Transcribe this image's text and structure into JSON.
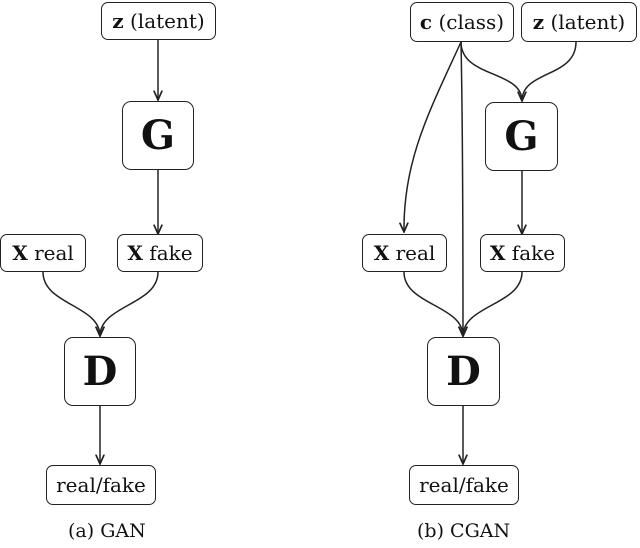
{
  "gan": {
    "z_node": {
      "symbol": "z",
      "label": "(latent)"
    },
    "g_node": {
      "label": "G"
    },
    "x_real": {
      "symbol": "X",
      "label": "real"
    },
    "x_fake": {
      "symbol": "X",
      "label": "fake"
    },
    "d_node": {
      "label": "D"
    },
    "output": {
      "label": "real/fake"
    },
    "caption": "(a) GAN"
  },
  "cgan": {
    "c_node": {
      "symbol": "c",
      "label": "(class)"
    },
    "z_node": {
      "symbol": "z",
      "label": "(latent)"
    },
    "g_node": {
      "label": "G"
    },
    "x_real": {
      "symbol": "X",
      "label": "real"
    },
    "x_fake": {
      "symbol": "X",
      "label": "fake"
    },
    "d_node": {
      "label": "D"
    },
    "output": {
      "label": "real/fake"
    },
    "caption": "(b) CGAN"
  }
}
